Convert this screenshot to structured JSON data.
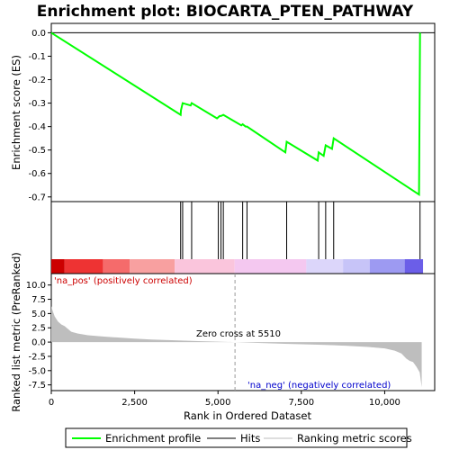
{
  "chart_data": {
    "type": "line",
    "title": "Enrichment plot: BIOCARTA_PTEN_PATHWAY",
    "xlabel": "Rank in Ordered Dataset",
    "xlim": [
      0,
      11500
    ],
    "x_ticks": [
      "0",
      "2,500",
      "5,000",
      "7,500",
      "10,000"
    ],
    "x_tick_values": [
      0,
      2500,
      5000,
      7500,
      10000
    ],
    "es_panel": {
      "ylabel": "Enrichment score (ES)",
      "ylim": [
        -0.72,
        0.04
      ],
      "y_ticks": [
        "0.0",
        "-0.1",
        "-0.2",
        "-0.3",
        "-0.4",
        "-0.5",
        "-0.6",
        "-0.7"
      ],
      "y_tick_values": [
        0.0,
        -0.1,
        -0.2,
        -0.3,
        -0.4,
        -0.5,
        -0.6,
        -0.7
      ],
      "series": [
        {
          "name": "Enrichment profile",
          "color": "#00ff00",
          "x": [
            0,
            3880,
            3890,
            3940,
            4180,
            4210,
            4970,
            5010,
            5050,
            5090,
            5160,
            5700,
            5740,
            5830,
            5870,
            7020,
            7060,
            7990,
            8020,
            8170,
            8230,
            8420,
            8470,
            11030,
            11060
          ],
          "y": [
            0.0,
            -0.35,
            -0.33,
            -0.3,
            -0.31,
            -0.3,
            -0.365,
            -0.36,
            -0.355,
            -0.355,
            -0.35,
            -0.395,
            -0.39,
            -0.4,
            -0.4,
            -0.51,
            -0.465,
            -0.545,
            -0.51,
            -0.525,
            -0.48,
            -0.495,
            -0.45,
            -0.69,
            0.0
          ]
        }
      ]
    },
    "hits": {
      "name": "Hits",
      "color": "#000000",
      "positions": [
        3880,
        3940,
        4210,
        5010,
        5090,
        5160,
        5740,
        5870,
        7060,
        8020,
        8230,
        8470,
        11060
      ]
    },
    "color_bar": {
      "colors": [
        "#cc0000",
        "#ee3333",
        "#f56b6b",
        "#f8a0a0",
        "#fac5dc",
        "#f4c8f0",
        "#dcd6fa",
        "#c7c4f8",
        "#9d9af2",
        "#6b5ee8",
        "#2200cc"
      ],
      "boundaries": [
        0,
        400,
        1550,
        2350,
        3700,
        5500,
        7650,
        8750,
        9550,
        10600,
        11150
      ]
    },
    "metric_panel": {
      "name": "Ranking metric scores",
      "color": "#bebebe",
      "ylabel": "Ranked list metric (PreRanked)",
      "ylim": [
        -8.5,
        12
      ],
      "y_ticks": [
        "10.0",
        "7.5",
        "5.0",
        "2.5",
        "0.0",
        "-2.5",
        "-5.0",
        "-7.5"
      ],
      "y_tick_values": [
        10.0,
        7.5,
        5.0,
        2.5,
        0.0,
        -2.5,
        -5.0,
        -7.5
      ],
      "x": [
        0,
        40,
        100,
        200,
        300,
        400,
        600,
        800,
        1100,
        1500,
        2000,
        2500,
        3000,
        3500,
        4000,
        4500,
        5000,
        5510,
        6000,
        6500,
        7000,
        7500,
        8000,
        8500,
        9000,
        9500,
        10000,
        10300,
        10500,
        10650,
        10750,
        10850,
        10950,
        11050,
        11110
      ],
      "values": [
        6.3,
        5.5,
        4.5,
        3.6,
        3.1,
        2.8,
        1.8,
        1.5,
        1.2,
        1.0,
        0.8,
        0.6,
        0.45,
        0.35,
        0.25,
        0.15,
        0.07,
        0.0,
        -0.1,
        -0.2,
        -0.3,
        -0.38,
        -0.45,
        -0.55,
        -0.7,
        -0.85,
        -1.1,
        -1.5,
        -2.0,
        -2.9,
        -3.3,
        -3.5,
        -4.3,
        -5.3,
        -7.9
      ]
    },
    "annotations": {
      "pos_label": "'na_pos' (positively correlated)",
      "neg_label": "'na_neg' (negatively correlated)",
      "zero_cross": "Zero cross at 5510",
      "zero_cross_x": 5510
    },
    "legend": {
      "placement": "bottom",
      "items": [
        {
          "label": "Enrichment profile",
          "color": "#00ff00"
        },
        {
          "label": "Hits",
          "color": "#000000"
        },
        {
          "label": "Ranking metric scores",
          "color": "#bebebe"
        }
      ]
    }
  }
}
